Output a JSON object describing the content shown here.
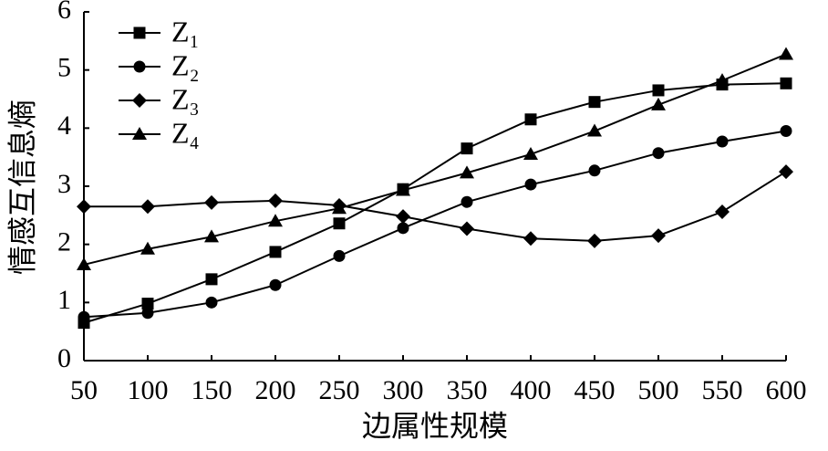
{
  "chart_data": {
    "type": "line",
    "x_label": "边属性规模",
    "y_label": "情感互信息熵",
    "x": [
      50,
      100,
      150,
      200,
      250,
      300,
      350,
      400,
      450,
      500,
      550,
      600
    ],
    "xlim": [
      50,
      600
    ],
    "xticks": [
      50,
      100,
      150,
      200,
      250,
      300,
      350,
      400,
      450,
      500,
      550,
      600
    ],
    "ylim": [
      0,
      6
    ],
    "yticks": [
      0,
      1,
      2,
      3,
      4,
      5,
      6
    ],
    "legend": "upper left",
    "series": [
      {
        "name": "Z₁",
        "color": "#000000",
        "marker": "square",
        "values": [
          0.65,
          0.98,
          1.4,
          1.87,
          2.36,
          2.95,
          3.65,
          4.15,
          4.45,
          4.65,
          4.75,
          4.77
        ]
      },
      {
        "name": "Z₂",
        "color": "#000000",
        "marker": "circle",
        "values": [
          0.75,
          0.82,
          1.0,
          1.3,
          1.8,
          2.28,
          2.73,
          3.03,
          3.27,
          3.57,
          3.77,
          3.95
        ]
      },
      {
        "name": "Z₃",
        "color": "#000000",
        "marker": "diamond",
        "values": [
          2.65,
          2.65,
          2.72,
          2.75,
          2.67,
          2.48,
          2.27,
          2.1,
          2.06,
          2.15,
          2.56,
          3.25
        ]
      },
      {
        "name": "Z₄",
        "color": "#000000",
        "marker": "triangle",
        "values": [
          1.65,
          1.92,
          2.13,
          2.4,
          2.62,
          2.93,
          3.23,
          3.55,
          3.95,
          4.4,
          4.82,
          5.27
        ]
      }
    ]
  }
}
